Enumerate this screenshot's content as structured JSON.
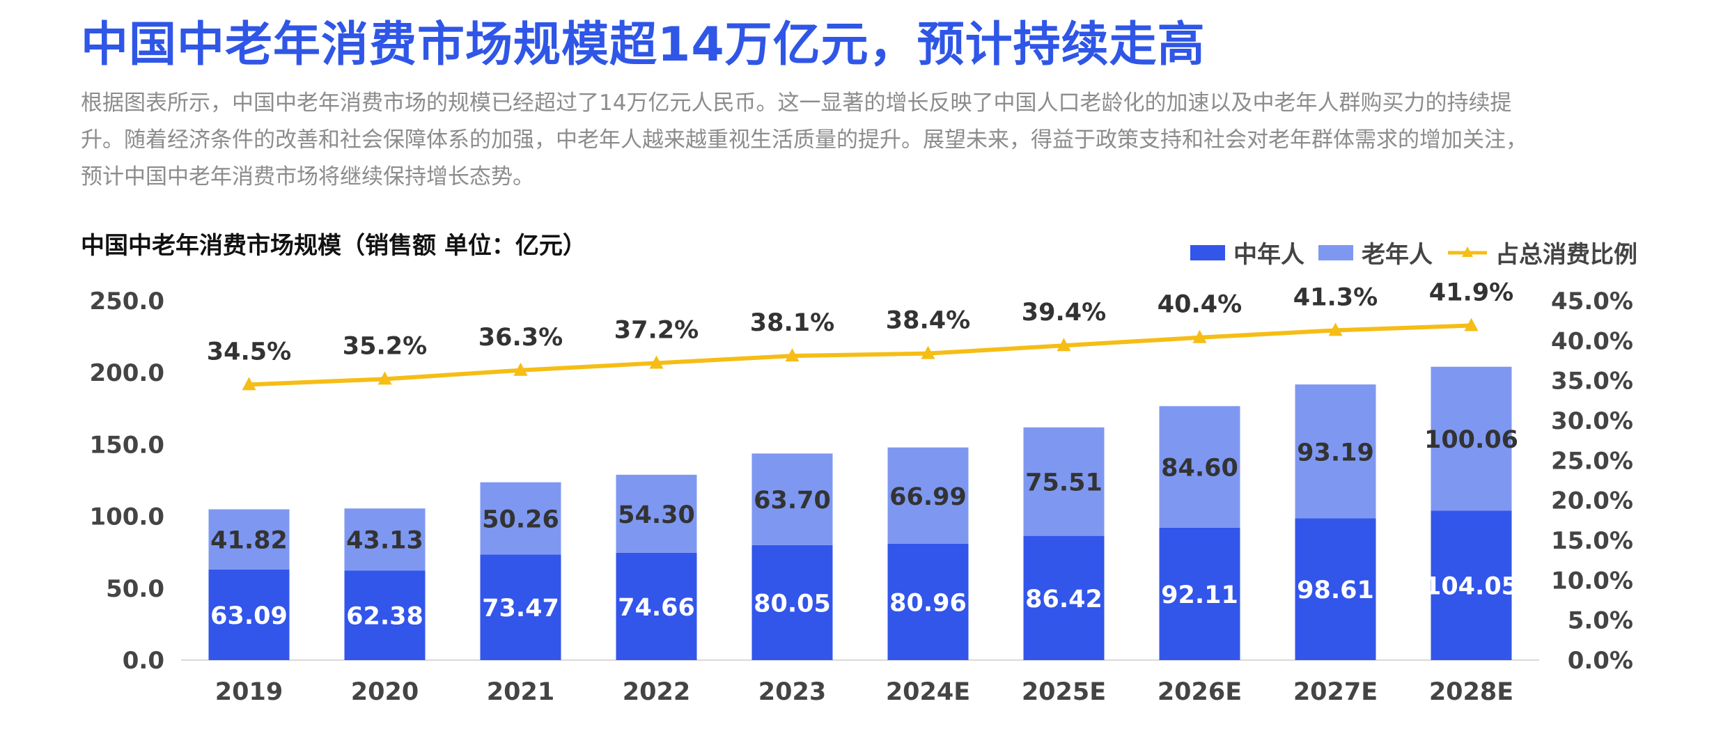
{
  "headline": "中国中老年消费市场规模超14万亿元，预计持续走高",
  "description": [
    "根据图表所示，中国中老年消费市场的规模已经超过了14万亿元人民币。这一显著的增长反映了中国人口老龄化的加速以及中老年人群购买力的持续提",
    "升。随着经济条件的改善和社会保障体系的加强，中老年人越来越重视生活质量的提升。展望未来，得益于政策支持和社会对老年群体需求的增加关注，",
    "预计中国中老年消费市场将继续保持增长态势。"
  ],
  "colors": {
    "title": "#2f56e6",
    "middle_aged": "#3255ea",
    "elderly": "#7e98f1",
    "line": "#f5bd15"
  },
  "chart_data": {
    "type": "bar",
    "title": "中国中老年消费市场规模（销售额   单位：亿元）",
    "stacked": true,
    "categories": [
      "2019",
      "2020",
      "2021",
      "2022",
      "2023",
      "2024E",
      "2025E",
      "2026E",
      "2027E",
      "2028E"
    ],
    "series": [
      {
        "name": "中年人",
        "type": "bar",
        "axis": "left",
        "values": [
          63.09,
          62.38,
          73.47,
          74.66,
          80.05,
          80.96,
          86.42,
          92.11,
          98.61,
          104.05
        ],
        "labels": [
          "63.09",
          "62.38",
          "73.47",
          "74.66",
          "80.05",
          "80.96",
          "86.42",
          "92.11",
          "98.61",
          "104.05"
        ]
      },
      {
        "name": "老年人",
        "type": "bar",
        "axis": "left",
        "values": [
          41.82,
          43.13,
          50.26,
          54.3,
          63.7,
          66.99,
          75.51,
          84.6,
          93.19,
          100.06
        ],
        "labels": [
          "41.82",
          "43.13",
          "50.26",
          "54.30",
          "63.70",
          "66.99",
          "75.51",
          "84.60",
          "93.19",
          "100.06"
        ]
      },
      {
        "name": "占总消费比例",
        "type": "line",
        "axis": "right",
        "values": [
          34.5,
          35.2,
          36.3,
          37.2,
          38.1,
          38.4,
          39.4,
          40.4,
          41.3,
          41.9
        ],
        "labels": [
          "34.5%",
          "35.2%",
          "36.3%",
          "37.2%",
          "38.1%",
          "38.4%",
          "39.4%",
          "40.4%",
          "41.3%",
          "41.9%"
        ]
      }
    ],
    "y_left": {
      "min": 0,
      "max": 250,
      "ticks": [
        "0.0",
        "50.0",
        "100.0",
        "150.0",
        "200.0",
        "250.0"
      ]
    },
    "y_right": {
      "min": 0,
      "max": 45,
      "ticks": [
        "0.0%",
        "5.0%",
        "10.0%",
        "15.0%",
        "20.0%",
        "25.0%",
        "30.0%",
        "35.0%",
        "40.0%",
        "45.0%"
      ]
    },
    "legend_position": "top-right",
    "grid": false
  }
}
